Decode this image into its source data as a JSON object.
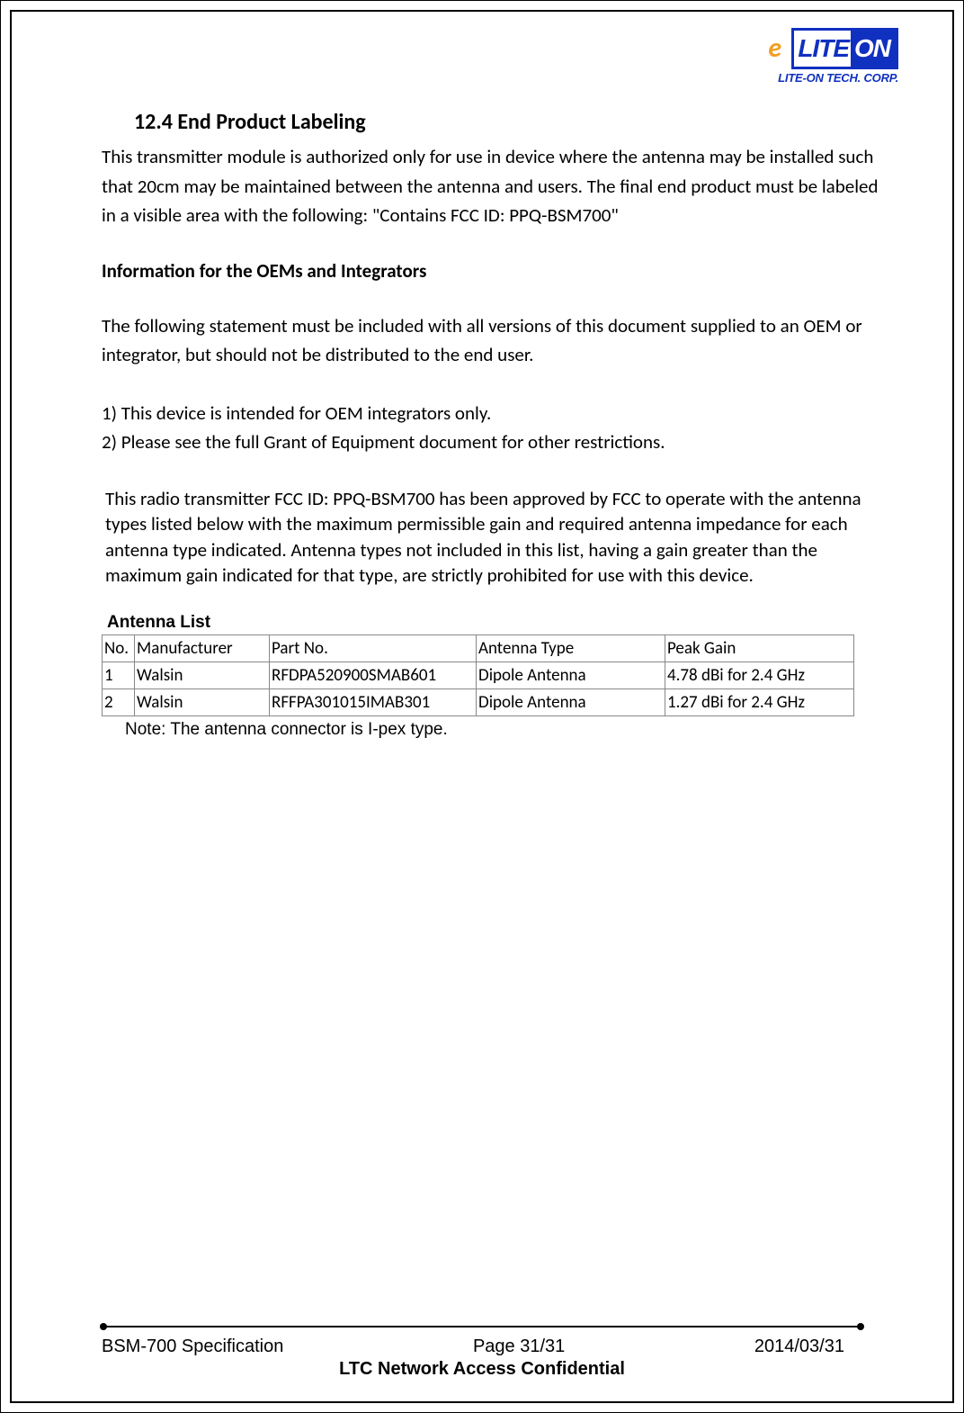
{
  "logo": {
    "swirl_glyph": "e",
    "lite": "LITE",
    "on": "ON",
    "sub": "LITE-ON TECH. CORP."
  },
  "heading": "12.4 End Product Labeling",
  "para1": "This transmitter module is authorized only for use in device where the antenna may be installed such that 20cm may be maintained between the antenna and users. The final end product must be labeled in a visible area with the following: \"Contains FCC ID: PPQ-BSM700\"",
  "subhead": "Information for the OEMs and Integrators",
  "para2": "The following statement must be included with all versions of this document supplied to an OEM or integrator, but should not be distributed to the end user.",
  "bullet1": "1) This device is intended for OEM integrators only.",
  "bullet2": "2) Please see the full Grant of Equipment document for other restrictions.",
  "radio_para": "This radio transmitter FCC ID: PPQ-BSM700 has been approved by FCC to operate with the antenna types listed below with the maximum permissible gain and required antenna impedance for each antenna type indicated. Antenna types not included in this list, having a gain greater than the maximum gain indicated for that type, are strictly prohibited for use with this device.",
  "antenna": {
    "title": "Antenna List",
    "columns": {
      "no": "No.",
      "mfg": "Manufacturer",
      "part": "Part No.",
      "type": "Antenna Type",
      "gain": "Peak Gain"
    },
    "rows": [
      {
        "no": "1",
        "mfg": "Walsin",
        "part": "RFDPA520900SMAB601",
        "type": "Dipole Antenna",
        "gain": "4.78 dBi for 2.4 GHz"
      },
      {
        "no": "2",
        "mfg": "Walsin",
        "part": "RFFPA301015IMAB301",
        "type": "Dipole Antenna",
        "gain": "1.27 dBi for 2.4 GHz"
      }
    ],
    "note": "Note: The antenna connector is I-pex type."
  },
  "footer": {
    "left": "BSM-700 Specification",
    "center": "Page 31/31",
    "right": "2014/03/31",
    "confidential": "LTC Network Access Confidential"
  }
}
